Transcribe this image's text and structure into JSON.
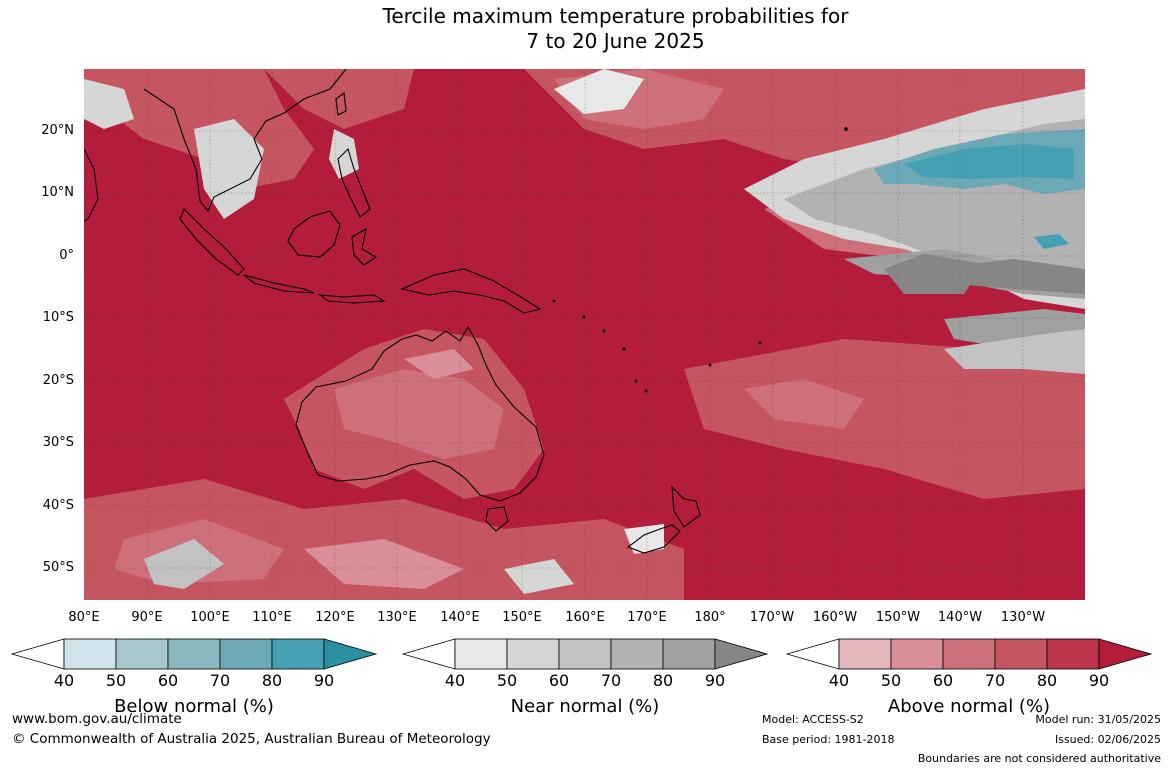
{
  "title_line1": "Tercile maximum temperature probabilities for",
  "title_line2": "7 to 20 June 2025",
  "lat_labels": [
    "20°N",
    "10°N",
    "0°",
    "10°S",
    "20°S",
    "30°S",
    "40°S",
    "50°S"
  ],
  "lon_labels": [
    "80°E",
    "90°E",
    "100°E",
    "110°E",
    "120°E",
    "130°E",
    "140°E",
    "150°E",
    "160°E",
    "170°E",
    "180°",
    "170°W",
    "160°W",
    "150°W",
    "140°W",
    "130°W"
  ],
  "legends": [
    {
      "label": "Below normal (%)",
      "ticks": [
        "40",
        "50",
        "60",
        "70",
        "80",
        "90"
      ],
      "colors": [
        "#cfe3ea",
        "#a6c7cc",
        "#8ab8bf",
        "#6aa9b5",
        "#46a0b3",
        "#2b8fa2"
      ]
    },
    {
      "label": "Near normal (%)",
      "ticks": [
        "40",
        "50",
        "60",
        "70",
        "80",
        "90"
      ],
      "colors": [
        "#e8e8e8",
        "#d6d6d6",
        "#c3c3c3",
        "#b2b2b2",
        "#a0a0a0",
        "#868686"
      ]
    },
    {
      "label": "Above normal (%)",
      "ticks": [
        "40",
        "50",
        "60",
        "70",
        "80",
        "90"
      ],
      "colors": [
        "#e4b6bd",
        "#d98e98",
        "#cd7079",
        "#c65562",
        "#bc3449",
        "#b31c3b"
      ]
    }
  ],
  "footer": {
    "website": "www.bom.gov.au/climate",
    "copyright": "© Commonwealth of Australia 2025, Australian Bureau of Meteorology",
    "model": "Model: ACCESS-S2",
    "base_period": "Base period: 1981-2018",
    "model_run": "Model run: 31/05/2025",
    "issued": "Issued: 02/06/2025",
    "disclaimer": "Boundaries are not considered authoritative"
  },
  "colors": {
    "above_90": "#b31c3b",
    "above_80": "#bc3449",
    "above_60": "#cd7079",
    "above_50": "#d98e98",
    "near_50": "#d6d6d6",
    "near_70": "#b2b2b2",
    "near_90": "#868686",
    "below_80": "#46a0b3",
    "coast": "#000000"
  }
}
